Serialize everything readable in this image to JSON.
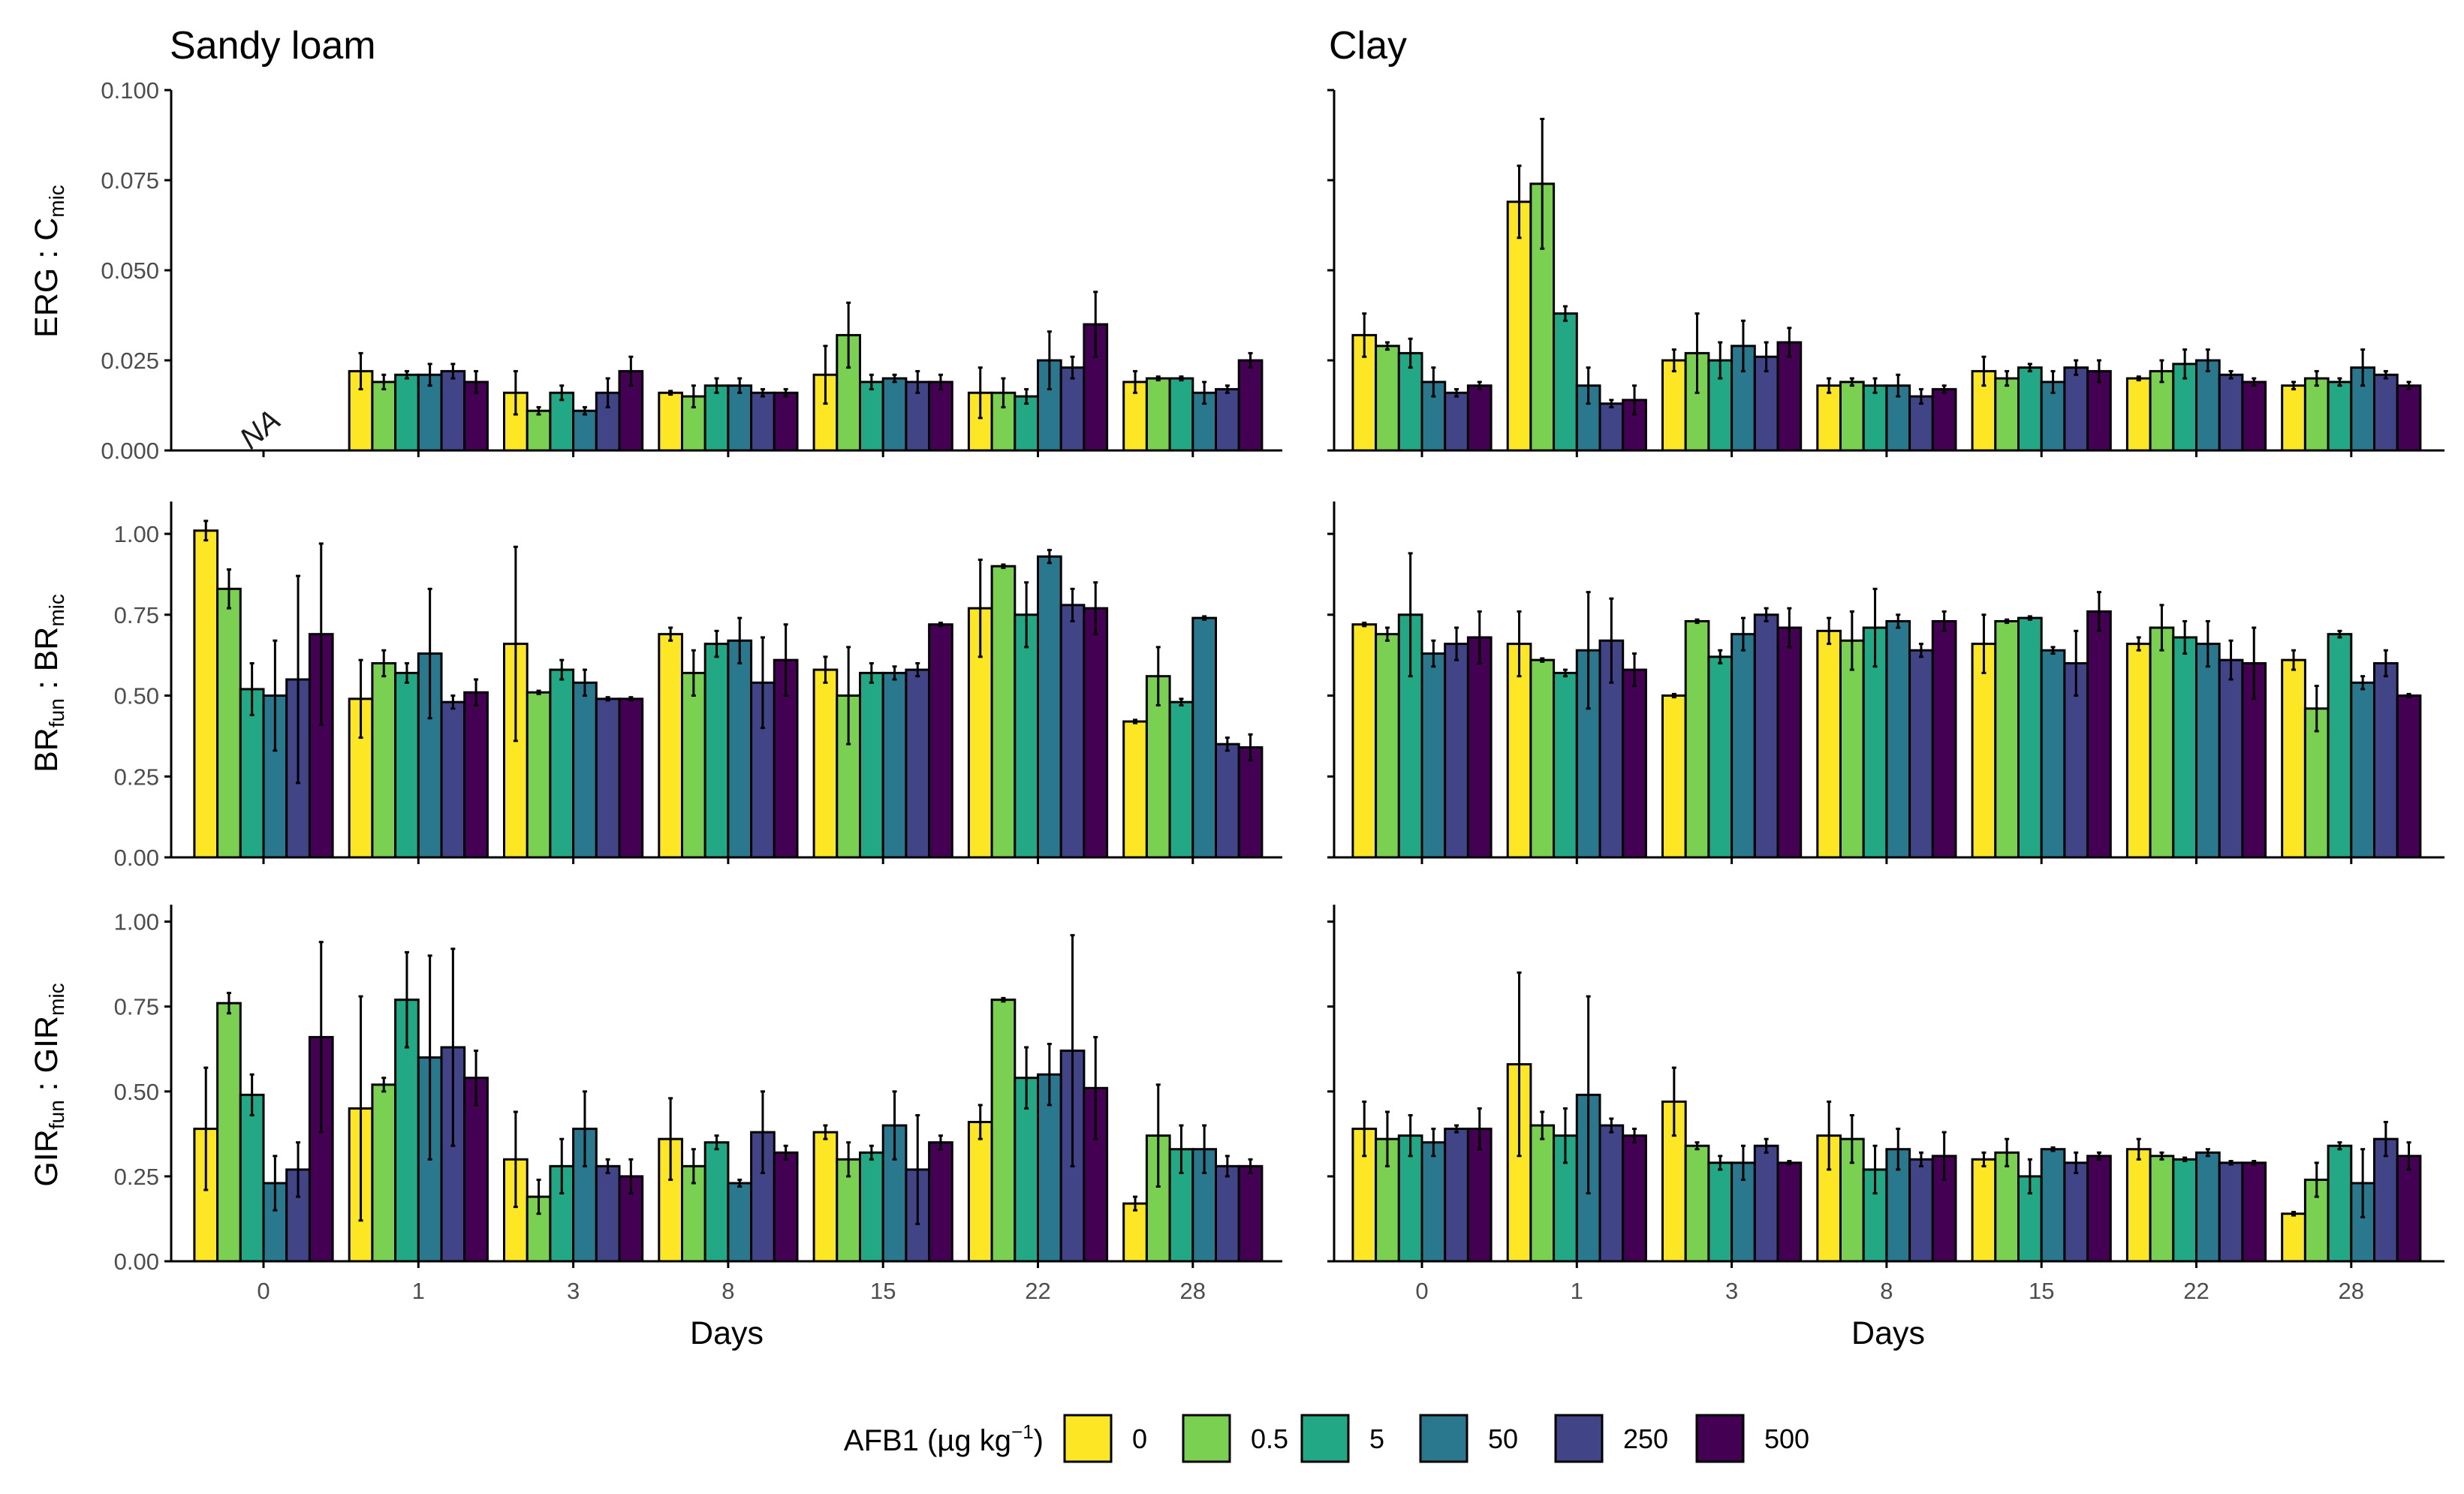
{
  "figure": {
    "columns": [
      "Sandy loam",
      "Clay"
    ],
    "x_axis_title": "Days",
    "legend": {
      "title": "AFB1 (µg kg",
      "title_sup": "−1",
      "title_close": ")",
      "placement": "bottom"
    },
    "na_text": "NA",
    "rows": [
      {
        "ylabel_main": "ERG : C",
        "ylabel_sub": "mic",
        "ylabel_main2": "",
        "ylabel_sub2": ""
      },
      {
        "ylabel_main": "BR",
        "ylabel_sub": "fun",
        "ylabel_main2": " : BR",
        "ylabel_sub2": "mic"
      },
      {
        "ylabel_main": "GIR",
        "ylabel_sub": "fun",
        "ylabel_main2": " : GIR",
        "ylabel_sub2": "mic"
      }
    ]
  },
  "colors": {
    "series": [
      "#FDE725",
      "#7AD151",
      "#22A884",
      "#2A788E",
      "#414487",
      "#440154"
    ],
    "bar_outline": "#000000",
    "axis": "#000000"
  },
  "chart_data": [
    {
      "type": "bar",
      "row": 0,
      "col": 0,
      "facet": "Sandy loam",
      "metric": "ERG : Cmic",
      "categories": [
        "0",
        "1",
        "3",
        "8",
        "15",
        "22",
        "28"
      ],
      "xlabel": "Days",
      "ylim": [
        0,
        0.1
      ],
      "yticks": [
        0,
        0.025,
        0.05,
        0.075,
        0.1
      ],
      "ytick_labels": [
        "0.000",
        "0.025",
        "0.050",
        "0.075",
        "0.100"
      ],
      "na_categories": [
        "0"
      ],
      "series": [
        {
          "name": "0",
          "values": [
            null,
            0.022,
            0.016,
            0.016,
            0.021,
            0.016,
            0.019
          ],
          "errors": [
            null,
            0.005,
            0.006,
            0.0005,
            0.008,
            0.007,
            0.003
          ]
        },
        {
          "name": "0.5",
          "values": [
            null,
            0.019,
            0.011,
            0.015,
            0.032,
            0.016,
            0.02
          ],
          "errors": [
            null,
            0.002,
            0.001,
            0.003,
            0.009,
            0.004,
            0.0005
          ]
        },
        {
          "name": "5",
          "values": [
            null,
            0.021,
            0.016,
            0.018,
            0.019,
            0.015,
            0.02
          ],
          "errors": [
            null,
            0.001,
            0.002,
            0.002,
            0.002,
            0.002,
            0.0005
          ]
        },
        {
          "name": "50",
          "values": [
            null,
            0.021,
            0.011,
            0.018,
            0.02,
            0.025,
            0.016
          ],
          "errors": [
            null,
            0.003,
            0.001,
            0.002,
            0.001,
            0.008,
            0.003
          ]
        },
        {
          "name": "250",
          "values": [
            null,
            0.022,
            0.016,
            0.016,
            0.019,
            0.023,
            0.017
          ],
          "errors": [
            null,
            0.002,
            0.004,
            0.001,
            0.003,
            0.003,
            0.001
          ]
        },
        {
          "name": "500",
          "values": [
            null,
            0.019,
            0.022,
            0.016,
            0.019,
            0.035,
            0.025
          ],
          "errors": [
            null,
            0.003,
            0.004,
            0.001,
            0.002,
            0.009,
            0.002
          ]
        }
      ]
    },
    {
      "type": "bar",
      "row": 0,
      "col": 1,
      "facet": "Clay",
      "metric": "ERG : Cmic",
      "categories": [
        "0",
        "1",
        "3",
        "8",
        "15",
        "22",
        "28"
      ],
      "xlabel": "Days",
      "ylim": [
        0,
        0.1
      ],
      "yticks": [
        0,
        0.025,
        0.05,
        0.075,
        0.1
      ],
      "ytick_labels": [
        "",
        "",
        "",
        "",
        ""
      ],
      "na_categories": [],
      "series": [
        {
          "name": "0",
          "values": [
            0.032,
            0.069,
            0.025,
            0.018,
            0.022,
            0.02,
            0.018
          ],
          "errors": [
            0.006,
            0.01,
            0.003,
            0.002,
            0.004,
            0.0005,
            0.001
          ]
        },
        {
          "name": "0.5",
          "values": [
            0.029,
            0.074,
            0.027,
            0.019,
            0.02,
            0.022,
            0.02
          ],
          "errors": [
            0.001,
            0.018,
            0.011,
            0.001,
            0.002,
            0.003,
            0.002
          ]
        },
        {
          "name": "5",
          "values": [
            0.027,
            0.038,
            0.025,
            0.018,
            0.023,
            0.024,
            0.019
          ],
          "errors": [
            0.004,
            0.002,
            0.005,
            0.002,
            0.001,
            0.004,
            0.001
          ]
        },
        {
          "name": "50",
          "values": [
            0.019,
            0.018,
            0.029,
            0.018,
            0.019,
            0.025,
            0.023
          ],
          "errors": [
            0.004,
            0.005,
            0.007,
            0.003,
            0.003,
            0.003,
            0.005
          ]
        },
        {
          "name": "250",
          "values": [
            0.016,
            0.013,
            0.026,
            0.015,
            0.023,
            0.021,
            0.021
          ],
          "errors": [
            0.001,
            0.001,
            0.004,
            0.002,
            0.002,
            0.001,
            0.001
          ]
        },
        {
          "name": "500",
          "values": [
            0.018,
            0.014,
            0.03,
            0.017,
            0.022,
            0.019,
            0.018
          ],
          "errors": [
            0.001,
            0.004,
            0.004,
            0.001,
            0.003,
            0.001,
            0.001
          ]
        }
      ]
    },
    {
      "type": "bar",
      "row": 1,
      "col": 0,
      "facet": "Sandy loam",
      "metric": "BRfun : BRmic",
      "categories": [
        "0",
        "1",
        "3",
        "8",
        "15",
        "22",
        "28"
      ],
      "xlabel": "Days",
      "ylim": [
        0,
        1.1
      ],
      "yticks": [
        0,
        0.25,
        0.5,
        0.75,
        1.0
      ],
      "ytick_labels": [
        "0.00",
        "0.25",
        "0.50",
        "0.75",
        "1.00"
      ],
      "na_categories": [],
      "series": [
        {
          "name": "0",
          "values": [
            1.01,
            0.49,
            0.66,
            0.69,
            0.58,
            0.77,
            0.42
          ],
          "errors": [
            0.03,
            0.12,
            0.3,
            0.02,
            0.04,
            0.15,
            0.005
          ]
        },
        {
          "name": "0.5",
          "values": [
            0.83,
            0.6,
            0.51,
            0.57,
            0.5,
            0.9,
            0.56
          ],
          "errors": [
            0.06,
            0.04,
            0.005,
            0.07,
            0.15,
            0.005,
            0.09
          ]
        },
        {
          "name": "5",
          "values": [
            0.52,
            0.57,
            0.58,
            0.66,
            0.57,
            0.75,
            0.48
          ],
          "errors": [
            0.08,
            0.03,
            0.03,
            0.04,
            0.03,
            0.1,
            0.01
          ]
        },
        {
          "name": "50",
          "values": [
            0.5,
            0.63,
            0.54,
            0.67,
            0.57,
            0.93,
            0.74
          ],
          "errors": [
            0.17,
            0.2,
            0.04,
            0.07,
            0.02,
            0.02,
            0.005
          ]
        },
        {
          "name": "250",
          "values": [
            0.55,
            0.48,
            0.49,
            0.54,
            0.58,
            0.78,
            0.35
          ],
          "errors": [
            0.32,
            0.02,
            0.005,
            0.14,
            0.02,
            0.05,
            0.02
          ]
        },
        {
          "name": "500",
          "values": [
            0.69,
            0.51,
            0.49,
            0.61,
            0.72,
            0.77,
            0.34
          ],
          "errors": [
            0.28,
            0.04,
            0.005,
            0.11,
            0.005,
            0.08,
            0.04
          ]
        }
      ]
    },
    {
      "type": "bar",
      "row": 1,
      "col": 1,
      "facet": "Clay",
      "metric": "BRfun : BRmic",
      "categories": [
        "0",
        "1",
        "3",
        "8",
        "15",
        "22",
        "28"
      ],
      "xlabel": "Days",
      "ylim": [
        0,
        1.1
      ],
      "yticks": [
        0,
        0.25,
        0.5,
        0.75,
        1.0
      ],
      "ytick_labels": [
        "",
        "",
        "",
        "",
        ""
      ],
      "na_categories": [],
      "series": [
        {
          "name": "0",
          "values": [
            0.72,
            0.66,
            0.5,
            0.7,
            0.66,
            0.66,
            0.61
          ],
          "errors": [
            0.005,
            0.1,
            0.005,
            0.04,
            0.09,
            0.02,
            0.03
          ]
        },
        {
          "name": "0.5",
          "values": [
            0.69,
            0.61,
            0.73,
            0.67,
            0.73,
            0.71,
            0.46
          ],
          "errors": [
            0.02,
            0.005,
            0.005,
            0.09,
            0.005,
            0.07,
            0.07
          ]
        },
        {
          "name": "5",
          "values": [
            0.75,
            0.57,
            0.62,
            0.71,
            0.74,
            0.68,
            0.69
          ],
          "errors": [
            0.19,
            0.01,
            0.02,
            0.12,
            0.005,
            0.05,
            0.01
          ]
        },
        {
          "name": "50",
          "values": [
            0.63,
            0.64,
            0.69,
            0.73,
            0.64,
            0.66,
            0.54
          ],
          "errors": [
            0.04,
            0.18,
            0.05,
            0.02,
            0.01,
            0.07,
            0.02
          ]
        },
        {
          "name": "250",
          "values": [
            0.66,
            0.67,
            0.75,
            0.64,
            0.6,
            0.61,
            0.6
          ],
          "errors": [
            0.05,
            0.13,
            0.02,
            0.02,
            0.1,
            0.06,
            0.04
          ]
        },
        {
          "name": "500",
          "values": [
            0.68,
            0.58,
            0.71,
            0.73,
            0.76,
            0.6,
            0.5
          ],
          "errors": [
            0.08,
            0.05,
            0.06,
            0.03,
            0.06,
            0.11,
            0.005
          ]
        }
      ]
    },
    {
      "type": "bar",
      "row": 2,
      "col": 0,
      "facet": "Sandy loam",
      "metric": "GIRfun : GIRmic",
      "categories": [
        "0",
        "1",
        "3",
        "8",
        "15",
        "22",
        "28"
      ],
      "xlabel": "Days",
      "ylim": [
        0,
        1.05
      ],
      "yticks": [
        0,
        0.25,
        0.5,
        0.75,
        1.0
      ],
      "ytick_labels": [
        "0.00",
        "0.25",
        "0.50",
        "0.75",
        "1.00"
      ],
      "na_categories": [],
      "series": [
        {
          "name": "0",
          "values": [
            0.39,
            0.45,
            0.3,
            0.36,
            0.38,
            0.41,
            0.17
          ],
          "errors": [
            0.18,
            0.33,
            0.14,
            0.12,
            0.02,
            0.05,
            0.02
          ]
        },
        {
          "name": "0.5",
          "values": [
            0.76,
            0.52,
            0.19,
            0.28,
            0.3,
            0.77,
            0.37
          ],
          "errors": [
            0.03,
            0.02,
            0.05,
            0.05,
            0.05,
            0.005,
            0.15
          ]
        },
        {
          "name": "5",
          "values": [
            0.49,
            0.77,
            0.28,
            0.35,
            0.32,
            0.54,
            0.33
          ],
          "errors": [
            0.06,
            0.14,
            0.08,
            0.02,
            0.02,
            0.09,
            0.07
          ]
        },
        {
          "name": "50",
          "values": [
            0.23,
            0.6,
            0.39,
            0.23,
            0.4,
            0.55,
            0.33
          ],
          "errors": [
            0.08,
            0.3,
            0.11,
            0.01,
            0.1,
            0.09,
            0.07
          ]
        },
        {
          "name": "250",
          "values": [
            0.27,
            0.63,
            0.28,
            0.38,
            0.27,
            0.62,
            0.28
          ],
          "errors": [
            0.08,
            0.29,
            0.02,
            0.12,
            0.16,
            0.34,
            0.03
          ]
        },
        {
          "name": "500",
          "values": [
            0.66,
            0.54,
            0.25,
            0.32,
            0.35,
            0.51,
            0.28
          ],
          "errors": [
            0.28,
            0.08,
            0.05,
            0.02,
            0.02,
            0.15,
            0.02
          ]
        }
      ]
    },
    {
      "type": "bar",
      "row": 2,
      "col": 1,
      "facet": "Clay",
      "metric": "GIRfun : GIRmic",
      "categories": [
        "0",
        "1",
        "3",
        "8",
        "15",
        "22",
        "28"
      ],
      "xlabel": "Days",
      "ylim": [
        0,
        1.05
      ],
      "yticks": [
        0,
        0.25,
        0.5,
        0.75,
        1.0
      ],
      "ytick_labels": [
        "",
        "",
        "",
        "",
        ""
      ],
      "na_categories": [],
      "series": [
        {
          "name": "0",
          "values": [
            0.39,
            0.58,
            0.47,
            0.37,
            0.3,
            0.33,
            0.14
          ],
          "errors": [
            0.08,
            0.27,
            0.1,
            0.1,
            0.02,
            0.03,
            0.005
          ]
        },
        {
          "name": "0.5",
          "values": [
            0.36,
            0.4,
            0.34,
            0.36,
            0.32,
            0.31,
            0.24
          ],
          "errors": [
            0.08,
            0.04,
            0.01,
            0.07,
            0.04,
            0.01,
            0.05
          ]
        },
        {
          "name": "5",
          "values": [
            0.37,
            0.37,
            0.29,
            0.27,
            0.25,
            0.3,
            0.34
          ],
          "errors": [
            0.06,
            0.08,
            0.02,
            0.07,
            0.05,
            0.005,
            0.01
          ]
        },
        {
          "name": "50",
          "values": [
            0.35,
            0.49,
            0.29,
            0.33,
            0.33,
            0.32,
            0.23
          ],
          "errors": [
            0.04,
            0.29,
            0.05,
            0.06,
            0.005,
            0.01,
            0.1
          ]
        },
        {
          "name": "250",
          "values": [
            0.39,
            0.4,
            0.34,
            0.3,
            0.29,
            0.29,
            0.36
          ],
          "errors": [
            0.01,
            0.02,
            0.02,
            0.02,
            0.03,
            0.005,
            0.05
          ]
        },
        {
          "name": "500",
          "values": [
            0.39,
            0.37,
            0.29,
            0.31,
            0.31,
            0.29,
            0.31
          ],
          "errors": [
            0.06,
            0.02,
            0.005,
            0.07,
            0.01,
            0.005,
            0.04
          ]
        }
      ]
    }
  ]
}
